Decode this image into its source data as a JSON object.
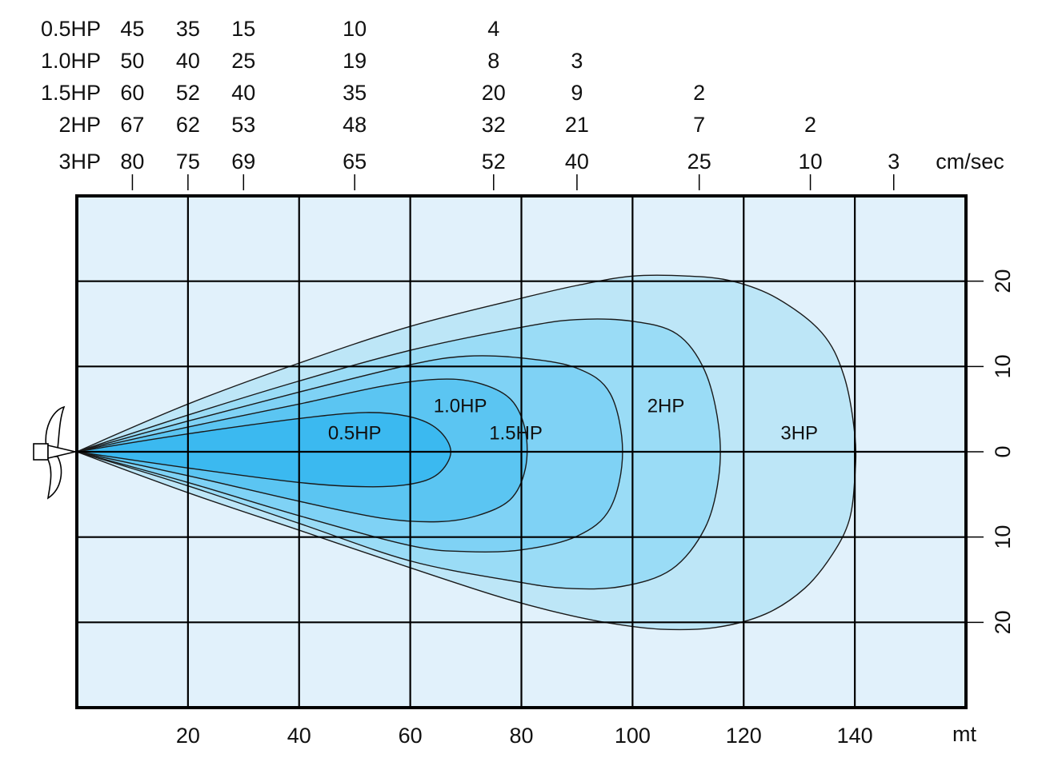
{
  "chart_data": {
    "type": "area",
    "xlabel": "mt",
    "ylabel": "",
    "x_ticks": [
      "20",
      "40",
      "60",
      "80",
      "100",
      "120",
      "140"
    ],
    "y_ticks": [
      "20",
      "10",
      "0",
      "10",
      "20"
    ],
    "xlim": [
      0,
      160
    ],
    "ylim": [
      -30,
      30
    ],
    "grid": true,
    "speed_unit": "cm/sec",
    "speed_table": {
      "x_positions": [
        10,
        20,
        30,
        50,
        75,
        90,
        112,
        132,
        147
      ],
      "rows": [
        {
          "label": "0.5HP",
          "values": [
            "45",
            "35",
            "15",
            "10",
            "4",
            "",
            "",
            "",
            ""
          ]
        },
        {
          "label": "1.0HP",
          "values": [
            "50",
            "40",
            "25",
            "19",
            "8",
            "3",
            "",
            "",
            ""
          ]
        },
        {
          "label": "1.5HP",
          "values": [
            "60",
            "52",
            "40",
            "35",
            "20",
            "9",
            "2",
            "",
            ""
          ]
        },
        {
          "label": "2HP",
          "values": [
            "67",
            "62",
            "53",
            "48",
            "32",
            "21",
            "7",
            "2",
            ""
          ]
        },
        {
          "label": "3HP",
          "values": [
            "80",
            "75",
            "69",
            "65",
            "52",
            "40",
            "25",
            "10",
            "3"
          ]
        }
      ]
    },
    "series": [
      {
        "name": "3HP",
        "color": "#bde6f7",
        "label_at": [
          130,
          2.3
        ],
        "outline": [
          [
            0,
            0
          ],
          [
            20,
            5.6
          ],
          [
            40,
            10.4
          ],
          [
            60,
            14.7
          ],
          [
            80,
            18
          ],
          [
            90,
            19.5
          ],
          [
            100,
            20.6
          ],
          [
            110,
            20.6
          ],
          [
            118,
            20
          ],
          [
            126,
            18
          ],
          [
            134,
            14
          ],
          [
            138,
            9
          ],
          [
            140,
            2
          ],
          [
            140,
            -3
          ],
          [
            139,
            -8
          ],
          [
            136,
            -12
          ],
          [
            131,
            -16
          ],
          [
            124,
            -19
          ],
          [
            115,
            -20.6
          ],
          [
            105,
            -20.8
          ],
          [
            95,
            -20
          ],
          [
            85,
            -18.6
          ],
          [
            75,
            -16.8
          ],
          [
            60,
            -13.6
          ],
          [
            40,
            -9.2
          ],
          [
            20,
            -4.8
          ]
        ]
      },
      {
        "name": "2HP",
        "color": "#9adcf6",
        "label_at": [
          106,
          5.5
        ],
        "outline": [
          [
            0,
            0
          ],
          [
            20,
            4.3
          ],
          [
            40,
            8.3
          ],
          [
            60,
            11.9
          ],
          [
            80,
            14.6
          ],
          [
            90,
            15.5
          ],
          [
            100,
            15.3
          ],
          [
            108,
            13.8
          ],
          [
            113,
            9.5
          ],
          [
            115.5,
            3
          ],
          [
            115.5,
            -3
          ],
          [
            113,
            -9
          ],
          [
            107,
            -13.8
          ],
          [
            98,
            -15.8
          ],
          [
            88,
            -16
          ],
          [
            78,
            -15.1
          ],
          [
            60,
            -12.8
          ],
          [
            40,
            -8.4
          ],
          [
            20,
            -4
          ]
        ]
      },
      {
        "name": "1.5HP",
        "color": "#7fd2f5",
        "label_at": [
          79,
          2.3
        ],
        "outline": [
          [
            0,
            0
          ],
          [
            20,
            3.6
          ],
          [
            40,
            7
          ],
          [
            60,
            10.2
          ],
          [
            70,
            11.2
          ],
          [
            80,
            11
          ],
          [
            90,
            9.8
          ],
          [
            96,
            6.8
          ],
          [
            98.2,
            0
          ],
          [
            96,
            -6.6
          ],
          [
            90,
            -9.9
          ],
          [
            80,
            -11.5
          ],
          [
            70,
            -11.7
          ],
          [
            60,
            -11
          ],
          [
            40,
            -7.5
          ],
          [
            20,
            -3.6
          ]
        ]
      },
      {
        "name": "1.0HP",
        "color": "#5bc5f2",
        "label_at": [
          69,
          5.5
        ],
        "outline": [
          [
            0,
            0
          ],
          [
            20,
            2.9
          ],
          [
            40,
            5.6
          ],
          [
            55,
            7.7
          ],
          [
            65,
            8.5
          ],
          [
            72,
            8.1
          ],
          [
            78,
            6.2
          ],
          [
            80.7,
            2.5
          ],
          [
            80.7,
            -2
          ],
          [
            78,
            -5.6
          ],
          [
            72,
            -7.5
          ],
          [
            65,
            -8.2
          ],
          [
            55,
            -7.8
          ],
          [
            40,
            -5.8
          ],
          [
            20,
            -2.8
          ]
        ]
      },
      {
        "name": "0.5HP",
        "color": "#3bb9f0",
        "label_at": [
          50,
          2.3
        ],
        "outline": [
          [
            0,
            0
          ],
          [
            20,
            2.1
          ],
          [
            40,
            3.9
          ],
          [
            52,
            4.6
          ],
          [
            60,
            4.1
          ],
          [
            65,
            2.6
          ],
          [
            67.3,
            0
          ],
          [
            65,
            -2.6
          ],
          [
            60,
            -3.8
          ],
          [
            52,
            -4.1
          ],
          [
            40,
            -3.6
          ],
          [
            20,
            -1.9
          ]
        ]
      }
    ]
  }
}
